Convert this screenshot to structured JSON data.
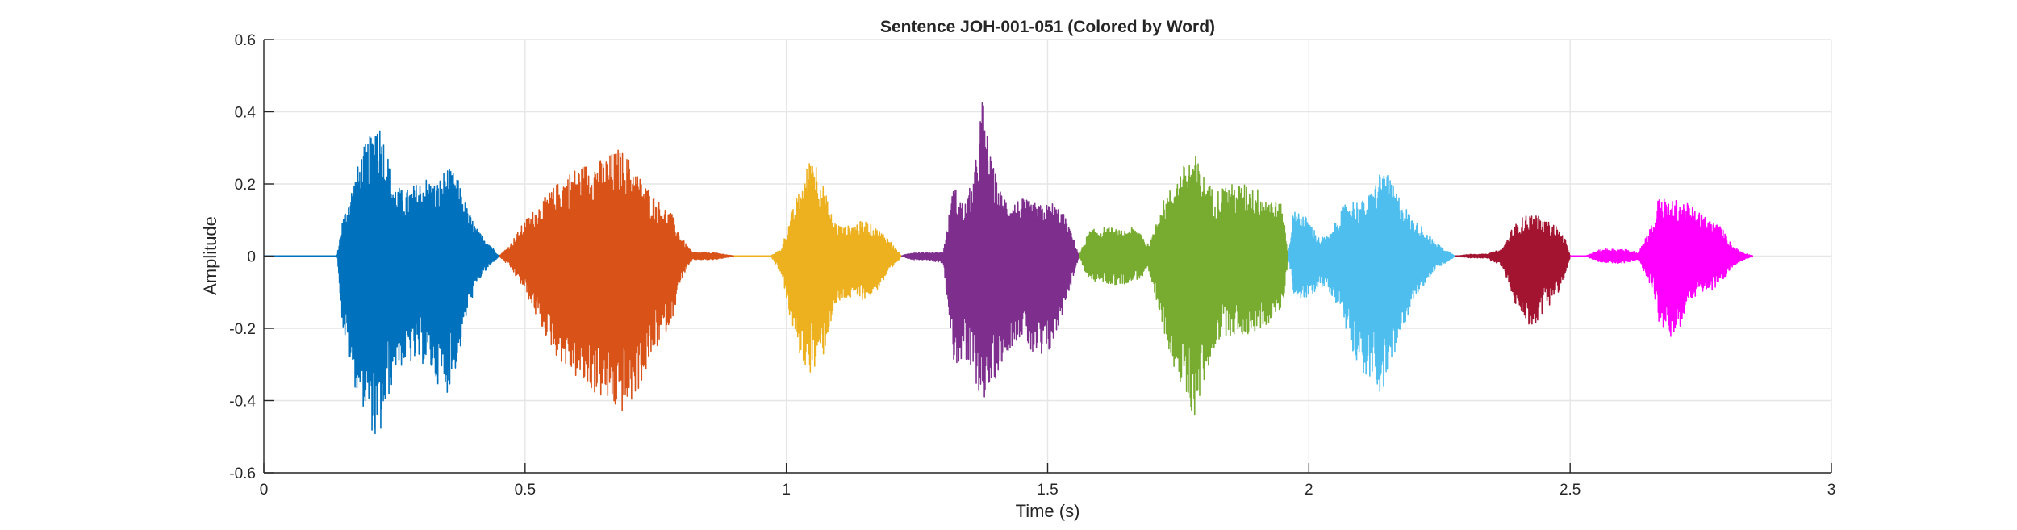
{
  "chart_data": {
    "type": "line",
    "title": "Sentence JOH-001-051 (Colored by Word)",
    "xlabel": "Time (s)",
    "ylabel": "Amplitude",
    "xlim": [
      0,
      3
    ],
    "ylim": [
      -0.6,
      0.6
    ],
    "xticks": [
      0,
      0.5,
      1,
      1.5,
      2,
      2.5,
      3
    ],
    "xtick_labels": [
      "0",
      "0.5",
      "1",
      "1.5",
      "2",
      "2.5",
      "3"
    ],
    "yticks": [
      0.6,
      0.4,
      0.2,
      0,
      -0.2,
      -0.4,
      -0.6
    ],
    "ytick_labels": [
      "0.6",
      "0.4",
      "0.2",
      "0",
      "-0.2",
      "-0.4",
      "-0.6"
    ],
    "grid": true,
    "series": [
      {
        "color": "#0072BD",
        "start": 0.0,
        "end": 0.45,
        "envelope_t": [
          0.0,
          0.14,
          0.15,
          0.17,
          0.19,
          0.21,
          0.215,
          0.23,
          0.25,
          0.27,
          0.29,
          0.31,
          0.33,
          0.35,
          0.37,
          0.39,
          0.41,
          0.43,
          0.45
        ],
        "upper": [
          0.0,
          0.0,
          0.1,
          0.2,
          0.3,
          0.35,
          0.41,
          0.33,
          0.2,
          0.18,
          0.2,
          0.22,
          0.2,
          0.25,
          0.22,
          0.13,
          0.07,
          0.04,
          0.0
        ],
        "lower": [
          0.0,
          0.0,
          -0.2,
          -0.35,
          -0.42,
          -0.5,
          -0.55,
          -0.45,
          -0.32,
          -0.3,
          -0.3,
          -0.3,
          -0.35,
          -0.38,
          -0.3,
          -0.15,
          -0.07,
          -0.03,
          0.0
        ]
      },
      {
        "color": "#D95319",
        "start": 0.45,
        "end": 0.9,
        "envelope_t": [
          0.45,
          0.47,
          0.5,
          0.53,
          0.56,
          0.59,
          0.62,
          0.65,
          0.68,
          0.7,
          0.72,
          0.75,
          0.78,
          0.8,
          0.82,
          0.86,
          0.9
        ],
        "upper": [
          0.0,
          0.03,
          0.1,
          0.15,
          0.2,
          0.24,
          0.26,
          0.27,
          0.3,
          0.27,
          0.22,
          0.16,
          0.12,
          0.05,
          0.01,
          0.01,
          0.0
        ],
        "lower": [
          0.0,
          -0.03,
          -0.1,
          -0.2,
          -0.28,
          -0.33,
          -0.37,
          -0.4,
          -0.44,
          -0.42,
          -0.36,
          -0.26,
          -0.18,
          -0.06,
          -0.01,
          -0.01,
          0.0
        ]
      },
      {
        "color": "#EDB120",
        "start": 0.9,
        "end": 1.22,
        "envelope_t": [
          0.9,
          0.97,
          0.99,
          1.01,
          1.03,
          1.05,
          1.07,
          1.09,
          1.11,
          1.13,
          1.15,
          1.17,
          1.19,
          1.21,
          1.22
        ],
        "upper": [
          0.0,
          0.0,
          0.02,
          0.12,
          0.2,
          0.3,
          0.2,
          0.1,
          0.08,
          0.09,
          0.1,
          0.08,
          0.06,
          0.02,
          0.0
        ],
        "lower": [
          0.0,
          0.0,
          -0.05,
          -0.2,
          -0.3,
          -0.33,
          -0.28,
          -0.15,
          -0.12,
          -0.12,
          -0.12,
          -0.1,
          -0.06,
          -0.02,
          0.0
        ]
      },
      {
        "color": "#7E2F8E",
        "start": 1.22,
        "end": 1.56,
        "envelope_t": [
          1.22,
          1.24,
          1.27,
          1.3,
          1.32,
          1.34,
          1.36,
          1.375,
          1.39,
          1.41,
          1.43,
          1.45,
          1.47,
          1.49,
          1.51,
          1.53,
          1.55,
          1.56
        ],
        "upper": [
          0.0,
          0.01,
          0.01,
          0.01,
          0.2,
          0.14,
          0.23,
          0.45,
          0.28,
          0.18,
          0.15,
          0.16,
          0.15,
          0.14,
          0.15,
          0.12,
          0.05,
          0.0
        ],
        "lower": [
          0.0,
          -0.01,
          -0.01,
          -0.02,
          -0.3,
          -0.3,
          -0.35,
          -0.4,
          -0.38,
          -0.3,
          -0.25,
          -0.22,
          -0.28,
          -0.3,
          -0.25,
          -0.15,
          -0.05,
          0.0
        ]
      },
      {
        "color": "#77AC30",
        "start": 1.56,
        "end": 1.96,
        "envelope_t": [
          1.56,
          1.57,
          1.58,
          1.6,
          1.62,
          1.64,
          1.66,
          1.68,
          1.69,
          1.7,
          1.71,
          1.72,
          1.74,
          1.76,
          1.78,
          1.8,
          1.82,
          1.84,
          1.86,
          1.88,
          1.9,
          1.92,
          1.94,
          1.95,
          1.96
        ],
        "upper": [
          0.0,
          0.04,
          0.07,
          0.08,
          0.08,
          0.07,
          0.08,
          0.07,
          0.03,
          0.05,
          0.12,
          0.15,
          0.2,
          0.25,
          0.29,
          0.22,
          0.18,
          0.2,
          0.2,
          0.2,
          0.19,
          0.17,
          0.15,
          0.14,
          0.0
        ],
        "lower": [
          0.0,
          -0.04,
          -0.07,
          -0.07,
          -0.08,
          -0.08,
          -0.07,
          -0.06,
          -0.03,
          -0.1,
          -0.15,
          -0.2,
          -0.3,
          -0.4,
          -0.45,
          -0.35,
          -0.25,
          -0.22,
          -0.22,
          -0.22,
          -0.21,
          -0.19,
          -0.16,
          -0.14,
          0.0
        ]
      },
      {
        "color": "#4DBEEE",
        "start": 1.96,
        "end": 2.28,
        "envelope_t": [
          1.96,
          1.97,
          1.98,
          2.0,
          2.02,
          2.04,
          2.06,
          2.08,
          2.1,
          2.12,
          2.14,
          2.16,
          2.18,
          2.2,
          2.22,
          2.24,
          2.26,
          2.28
        ],
        "upper": [
          0.0,
          0.12,
          0.13,
          0.1,
          0.05,
          0.06,
          0.13,
          0.16,
          0.15,
          0.18,
          0.25,
          0.2,
          0.15,
          0.1,
          0.08,
          0.04,
          0.02,
          0.0
        ],
        "lower": [
          0.0,
          -0.1,
          -0.12,
          -0.12,
          -0.08,
          -0.1,
          -0.15,
          -0.25,
          -0.32,
          -0.36,
          -0.38,
          -0.3,
          -0.2,
          -0.12,
          -0.08,
          -0.04,
          -0.02,
          0.0
        ]
      },
      {
        "color": "#A2142F",
        "start": 2.28,
        "end": 2.5,
        "envelope_t": [
          2.28,
          2.31,
          2.34,
          2.37,
          2.39,
          2.41,
          2.43,
          2.45,
          2.47,
          2.49,
          2.5
        ],
        "upper": [
          0.0,
          0.005,
          0.005,
          0.02,
          0.08,
          0.11,
          0.12,
          0.1,
          0.09,
          0.05,
          0.0
        ],
        "lower": [
          0.0,
          -0.005,
          -0.005,
          -0.03,
          -0.12,
          -0.18,
          -0.2,
          -0.15,
          -0.12,
          -0.06,
          0.0
        ]
      },
      {
        "color": "#FF00FF",
        "start": 2.5,
        "end": 2.85,
        "envelope_t": [
          2.5,
          2.53,
          2.56,
          2.6,
          2.63,
          2.66,
          2.67,
          2.69,
          2.71,
          2.73,
          2.75,
          2.77,
          2.79,
          2.81,
          2.83,
          2.85
        ],
        "upper": [
          0.0,
          0.0,
          0.02,
          0.02,
          0.01,
          0.1,
          0.17,
          0.15,
          0.16,
          0.14,
          0.12,
          0.1,
          0.08,
          0.03,
          0.01,
          0.0
        ],
        "lower": [
          0.0,
          0.0,
          -0.02,
          -0.02,
          -0.01,
          -0.1,
          -0.2,
          -0.23,
          -0.2,
          -0.12,
          -0.1,
          -0.1,
          -0.07,
          -0.03,
          -0.01,
          0.0
        ]
      }
    ]
  }
}
